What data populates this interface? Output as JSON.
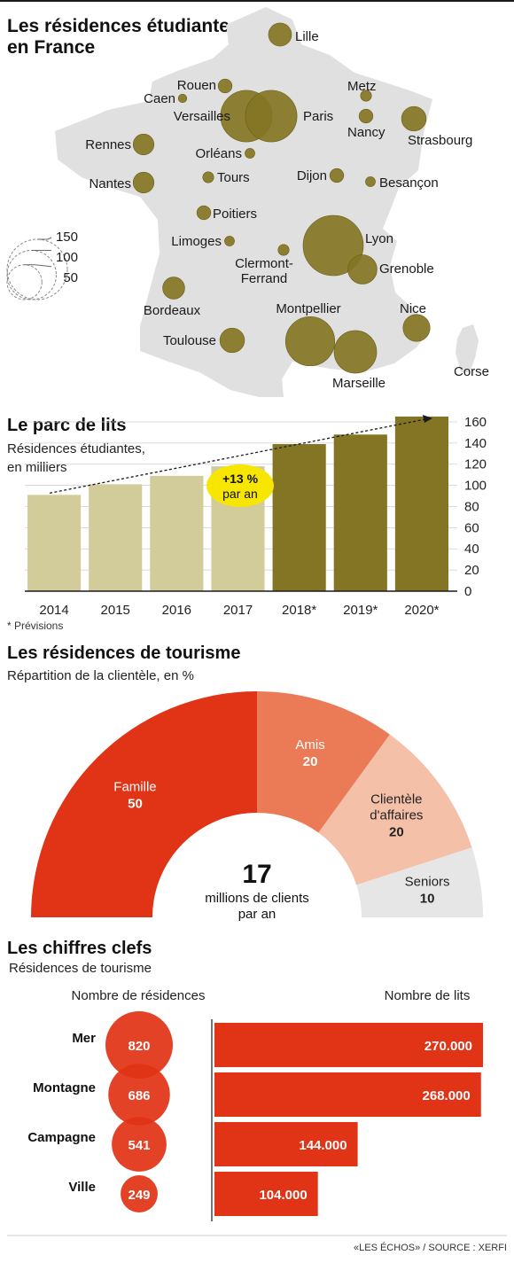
{
  "chart_data": [
    {
      "type": "map-bubbles",
      "title": "Les résidences étudiantes en France",
      "title_lines": [
        "Les résidences étudiantes",
        "en France"
      ],
      "color": "#847524",
      "land_color": "#e0e0e0",
      "legend_sizes": [
        150,
        100,
        50
      ],
      "cities": [
        {
          "name": "Lille",
          "lines": [
            "Lille"
          ],
          "value": 22
        },
        {
          "name": "Rouen",
          "lines": [
            "Rouen"
          ],
          "value": 8
        },
        {
          "name": "Caen",
          "lines": [
            "Caen"
          ],
          "value": 3
        },
        {
          "name": "Versailles",
          "lines": [
            "Versailles"
          ],
          "value": 110
        },
        {
          "name": "Paris",
          "lines": [
            "Paris"
          ],
          "value": 110
        },
        {
          "name": "Metz",
          "lines": [
            "Metz"
          ],
          "value": 5
        },
        {
          "name": "Nancy",
          "lines": [
            "Nancy"
          ],
          "value": 8
        },
        {
          "name": "Strasbourg",
          "lines": [
            "Strasbourg"
          ],
          "value": 25
        },
        {
          "name": "Rennes",
          "lines": [
            "Rennes"
          ],
          "value": 18
        },
        {
          "name": "Orléans",
          "lines": [
            "Orléans"
          ],
          "value": 4
        },
        {
          "name": "Tours",
          "lines": [
            "Tours"
          ],
          "value": 5
        },
        {
          "name": "Dijon",
          "lines": [
            "Dijon"
          ],
          "value": 8
        },
        {
          "name": "Besançon",
          "lines": [
            "Besançon"
          ],
          "value": 4
        },
        {
          "name": "Nantes",
          "lines": [
            "Nantes"
          ],
          "value": 18
        },
        {
          "name": "Poitiers",
          "lines": [
            "Poitiers"
          ],
          "value": 8
        },
        {
          "name": "Limoges",
          "lines": [
            "Limoges"
          ],
          "value": 4
        },
        {
          "name": "Clermont-Ferrand",
          "lines": [
            "Clermont-",
            "Ferrand"
          ],
          "value": 5
        },
        {
          "name": "Lyon",
          "lines": [
            "Lyon"
          ],
          "value": 150
        },
        {
          "name": "Grenoble",
          "lines": [
            "Grenoble"
          ],
          "value": 35
        },
        {
          "name": "Bordeaux",
          "lines": [
            "Bordeaux"
          ],
          "value": 20
        },
        {
          "name": "Montpellier",
          "lines": [
            "Montpellier"
          ],
          "value": 100
        },
        {
          "name": "Nice",
          "lines": [
            "Nice"
          ],
          "value": 30
        },
        {
          "name": "Toulouse",
          "lines": [
            "Toulouse"
          ],
          "value": 25
        },
        {
          "name": "Marseille",
          "lines": [
            "Marseille"
          ],
          "value": 75
        },
        {
          "name": "Corse",
          "lines": [
            "Corse"
          ],
          "value": 0
        }
      ]
    },
    {
      "type": "bar",
      "title": "Le parc de lits",
      "subtitle_lines": [
        "Résidences étudiantes,",
        "en milliers"
      ],
      "categories": [
        "2014",
        "2015",
        "2016",
        "2017",
        "2018*",
        "2019*",
        "2020*"
      ],
      "values": [
        91,
        101,
        109,
        118,
        139,
        148,
        165
      ],
      "forecast": [
        false,
        false,
        false,
        false,
        true,
        true,
        true
      ],
      "colors": {
        "actual": "#d2cb9a",
        "forecast": "#847524"
      },
      "ylim": [
        0,
        165
      ],
      "yticks": [
        0,
        20,
        40,
        60,
        80,
        100,
        120,
        140,
        160
      ],
      "y_axis_side": "right",
      "grid": true,
      "trend": {
        "label_value": "+13 %",
        "label_text": "par an",
        "color": "#f6e600"
      },
      "footnote": "* Prévisions"
    },
    {
      "type": "pie",
      "variant": "half-donut",
      "title": "Les résidences de tourisme",
      "subtitle": "Répartition de la clientèle, en %",
      "slices": [
        {
          "label_lines": [
            "Famille"
          ],
          "value": 50,
          "color": "#e13416",
          "text_color": "#ffffff"
        },
        {
          "label_lines": [
            "Amis"
          ],
          "value": 20,
          "color": "#ea7b56",
          "text_color": "#ffffff"
        },
        {
          "label_lines": [
            "Clientèle",
            "d'affaires"
          ],
          "value": 20,
          "color": "#f4c0a8",
          "text_color": "#222222"
        },
        {
          "label_lines": [
            "Seniors"
          ],
          "value": 10,
          "color": "#e6e6e6",
          "text_color": "#222222"
        }
      ],
      "center": {
        "value": "17",
        "line1": "millions de clients",
        "line2": "par an"
      }
    },
    {
      "type": "bar",
      "title": "Les chiffres clefs",
      "subtitle": "Résidences  de tourisme",
      "left_header": "Nombre de résidences",
      "right_header": "Nombre de lits",
      "categories": [
        "Mer",
        "Montagne",
        "Campagne",
        "Ville"
      ],
      "residences": [
        820,
        686,
        541,
        249
      ],
      "lits": [
        270000,
        268000,
        144000,
        104000
      ],
      "lits_labels": [
        "270.000",
        "268.000",
        "144.000",
        "104.000"
      ],
      "color": "#e13416"
    }
  ],
  "source": "«LES ÉCHOS» / SOURCE : XERFI"
}
